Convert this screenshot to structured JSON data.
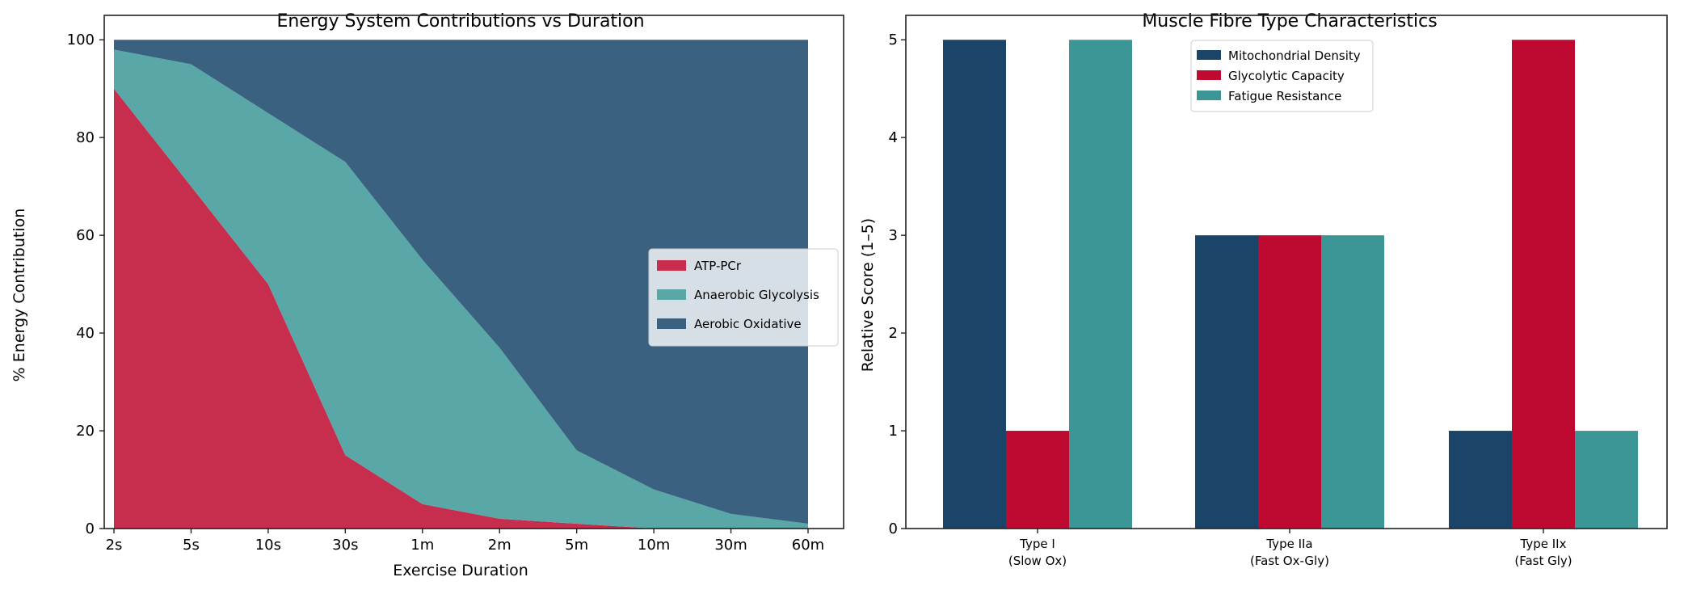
{
  "chart_data": [
    {
      "type": "area",
      "stacked": true,
      "title": "Energy System Contributions vs Duration",
      "xlabel": "Exercise Duration",
      "ylabel": "% Energy Contribution",
      "categories": [
        "2s",
        "5s",
        "10s",
        "30s",
        "1m",
        "2m",
        "5m",
        "10m",
        "30m",
        "60m"
      ],
      "ylim": [
        0,
        105
      ],
      "yticks": [
        0,
        20,
        40,
        60,
        80,
        100
      ],
      "grid": false,
      "legend_position": "center-right",
      "series": [
        {
          "name": "ATP-PCr",
          "color": "#c72e4d",
          "values": [
            90,
            70,
            50,
            15,
            5,
            2,
            1,
            0,
            0,
            0
          ]
        },
        {
          "name": "Anaerobic Glycolysis",
          "color": "#59a7a7",
          "values": [
            8,
            25,
            35,
            60,
            50,
            35,
            15,
            8,
            3,
            1
          ]
        },
        {
          "name": "Aerobic Oxidative",
          "color": "#3a6180",
          "values": [
            2,
            5,
            15,
            25,
            45,
            63,
            84,
            92,
            97,
            99
          ]
        }
      ]
    },
    {
      "type": "bar",
      "title": "Muscle Fibre Type Characteristics",
      "xlabel": "",
      "ylabel": "Relative Score (1–5)",
      "categories": [
        [
          "Type I",
          "(Slow Ox)"
        ],
        [
          "Type IIa",
          "(Fast Ox-Gly)"
        ],
        [
          "Type IIx",
          "(Fast Gly)"
        ]
      ],
      "ylim": [
        0,
        5.25
      ],
      "yticks": [
        0,
        1,
        2,
        3,
        4,
        5
      ],
      "grid": false,
      "legend_position": "upper-center",
      "series": [
        {
          "name": "Mitochondrial Density",
          "color": "#1a4568",
          "values": [
            5,
            3,
            1
          ]
        },
        {
          "name": "Glycolytic Capacity",
          "color": "#be0a30",
          "values": [
            1,
            3,
            5
          ]
        },
        {
          "name": "Fatigue Resistance",
          "color": "#3d9696",
          "values": [
            5,
            3,
            1
          ]
        }
      ]
    }
  ]
}
